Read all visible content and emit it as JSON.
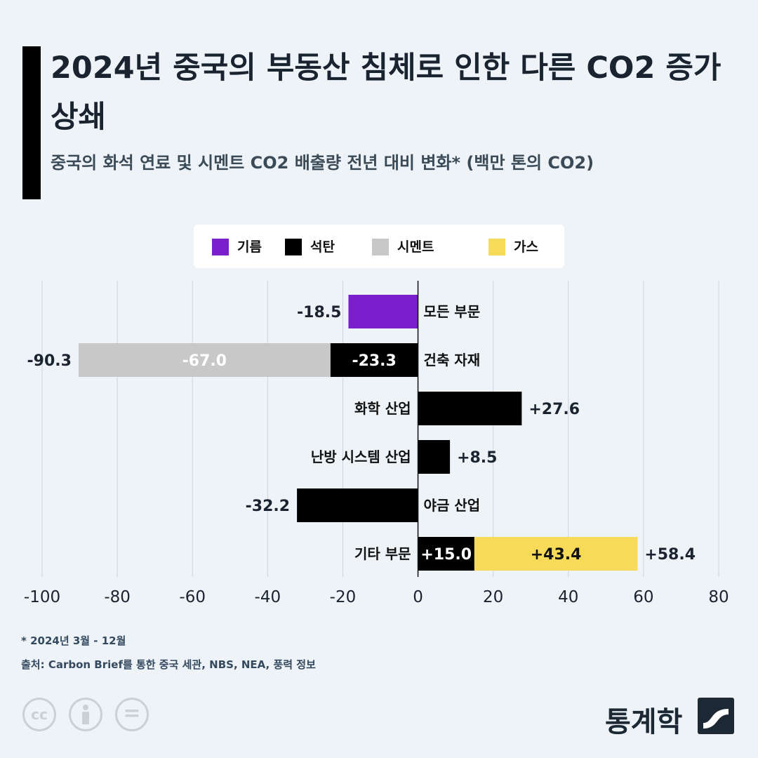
{
  "title": "2024년 중국의 부동산 침체로 인한 다른 CO2 증가 상쇄",
  "subtitle": "중국의 화석 연료 및 시멘트 CO2 배출량 전년 대비 변화* (백만 톤의 CO2)",
  "legend": [
    {
      "label": "기름",
      "color": "#7a1fcc"
    },
    {
      "label": "석탄",
      "color": "#000000"
    },
    {
      "label": "시멘트",
      "color": "#c8c8c8"
    },
    {
      "label": "가스",
      "color": "#f7da58"
    }
  ],
  "chart_data": {
    "type": "bar",
    "orientation": "horizontal",
    "stacked": true,
    "xlim": [
      -100,
      80
    ],
    "x_ticks": [
      -100,
      -80,
      -60,
      -40,
      -20,
      0,
      20,
      40,
      60,
      80
    ],
    "x_tick_labels": [
      "-100",
      "-80",
      "-60",
      "-40",
      "-20",
      "0",
      "20",
      "40",
      "60",
      "80"
    ],
    "grid": "vertical",
    "legend_position": "top",
    "categories": [
      {
        "label": "모든 부문",
        "total_label": "-18.5",
        "segments": [
          {
            "series": "기름",
            "value": -18.5,
            "label": ""
          }
        ]
      },
      {
        "label": "건축 자재",
        "total_label": "-90.3",
        "segments": [
          {
            "series": "석탄",
            "value": -23.3,
            "label": "-23.3"
          },
          {
            "series": "시멘트",
            "value": -67.0,
            "label": "-67.0"
          }
        ]
      },
      {
        "label": "화학 산업",
        "total_label": "+27.6",
        "segments": [
          {
            "series": "석탄",
            "value": 27.6,
            "label": ""
          }
        ]
      },
      {
        "label": "난방 시스템 산업",
        "total_label": "+8.5",
        "segments": [
          {
            "series": "석탄",
            "value": 8.5,
            "label": ""
          }
        ]
      },
      {
        "label": "야금 산업",
        "total_label": "-32.2",
        "segments": [
          {
            "series": "석탄",
            "value": -32.2,
            "label": ""
          }
        ]
      },
      {
        "label": "기타 부문",
        "total_label": "+58.4",
        "segments": [
          {
            "series": "석탄",
            "value": 15.0,
            "label": "+15.0"
          },
          {
            "series": "가스",
            "value": 43.4,
            "label": "+43.4"
          }
        ]
      }
    ]
  },
  "footnote": "* 2024년 3월 - 12월",
  "source": "출처: Carbon Brief를 통한 중국 세관, NBS, NEA, 풍력 정보",
  "license_icons": [
    {
      "name": "cc-icon",
      "text": "cc"
    },
    {
      "name": "attribution-icon",
      "text": ""
    },
    {
      "name": "no-derivatives-icon",
      "text": "="
    }
  ],
  "brand": "통계학"
}
